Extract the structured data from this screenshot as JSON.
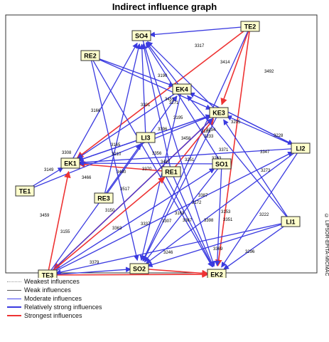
{
  "title": "Indirect influence graph",
  "copyright": "© LIPSOR-EPITA-MICMAC",
  "colors": {
    "weakest": "#999999",
    "weak": "#555555",
    "moderate": "#4444ee",
    "strong": "#3a3ae0",
    "strongest": "#ee3333",
    "node_fill": "#ffffcc",
    "node_border": "#333333"
  },
  "legend": [
    {
      "label": "Weakest influences",
      "style": "weakest"
    },
    {
      "label": "Weak influences",
      "style": "weak"
    },
    {
      "label": "Moderate influences",
      "style": "moderate"
    },
    {
      "label": "Relatively strong influences",
      "style": "strong"
    },
    {
      "label": "Strongest influences",
      "style": "strongest"
    }
  ],
  "nodes": [
    {
      "id": "SO4",
      "label": "SO4"
    },
    {
      "id": "TE2",
      "label": "TE2"
    },
    {
      "id": "RE2",
      "label": "RE2"
    },
    {
      "id": "EK4",
      "label": "EK4"
    },
    {
      "id": "KE3",
      "label": "KE3"
    },
    {
      "id": "LI3",
      "label": "LI3"
    },
    {
      "id": "EK1",
      "label": "EK1"
    },
    {
      "id": "RE1",
      "label": "RE1"
    },
    {
      "id": "SO1",
      "label": "SO1"
    },
    {
      "id": "LI2",
      "label": "LI2"
    },
    {
      "id": "TE1",
      "label": "TE1"
    },
    {
      "id": "RE3",
      "label": "RE3"
    },
    {
      "id": "LI1",
      "label": "LI1"
    },
    {
      "id": "TE3",
      "label": "TE3"
    },
    {
      "id": "SO2",
      "label": "SO2"
    },
    {
      "id": "EK2",
      "label": "EK2"
    }
  ],
  "edge_labels": [
    "3317",
    "3414",
    "3492",
    "3190",
    "3166",
    "3301",
    "3451",
    "3271",
    "3195",
    "3205",
    "3228",
    "3294",
    "3183",
    "3233",
    "3458",
    "3396",
    "3165",
    "3308",
    "3210",
    "3371",
    "3356",
    "3487",
    "3263",
    "3347",
    "3149",
    "3466",
    "3480",
    "3370",
    "3251",
    "3273",
    "3517",
    "3387",
    "3172",
    "3459",
    "3150",
    "3337",
    "3307",
    "3153",
    "3351",
    "3222",
    "3155",
    "3363",
    "3163",
    "3367",
    "3398",
    "3246",
    "3369",
    "3296",
    "3379"
  ]
}
